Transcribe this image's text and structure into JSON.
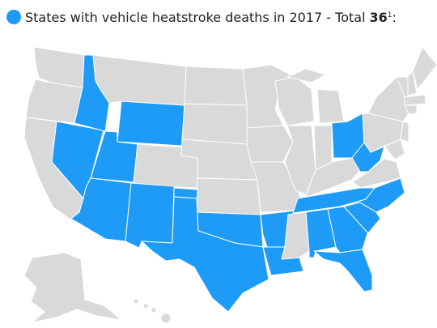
{
  "legend": {
    "text": "States with vehicle heatstroke deaths in 2017 - Total",
    "total": 36,
    "footnote_mark": "1",
    "suffix": ":"
  }
}
